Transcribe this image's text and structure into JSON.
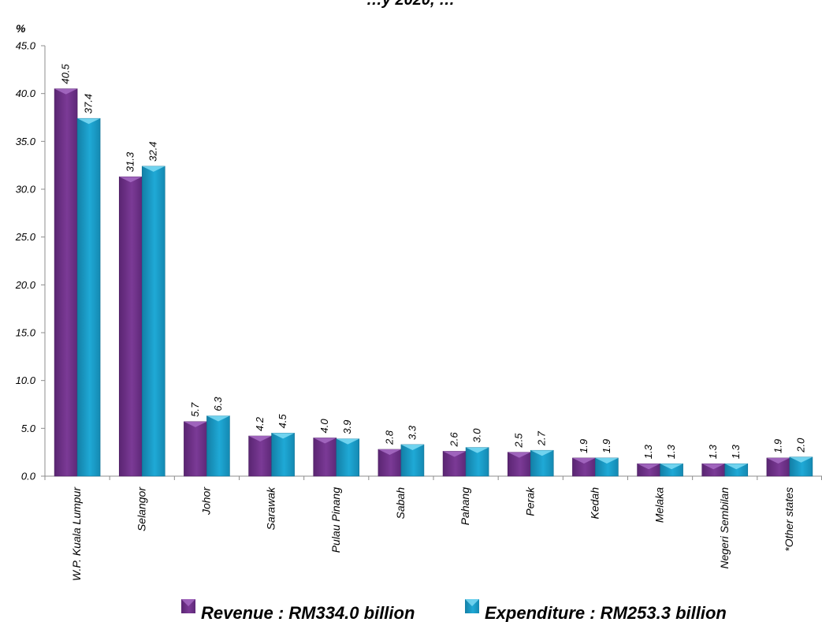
{
  "chart_data": {
    "type": "bar",
    "title": "…y 2020, …",
    "ylabel": "%",
    "xlabel": "",
    "ylim": [
      0,
      45
    ],
    "yticks": [
      "0.0",
      "5.0",
      "10.0",
      "15.0",
      "20.0",
      "25.0",
      "30.0",
      "35.0",
      "40.0",
      "45.0"
    ],
    "grid": false,
    "legend_position": "bottom",
    "categories": [
      "W.P. Kuala Lumpur",
      "Selangor",
      "Johor",
      "Sarawak",
      "Pulau Pinang",
      "Sabah",
      "Pahang",
      "Perak",
      "Kedah",
      "Melaka",
      "Negeri Sembilan",
      "*Other states"
    ],
    "series": [
      {
        "name": "Revenue : RM334.0 billion",
        "color": "#7b3a96",
        "values": [
          40.5,
          31.3,
          5.7,
          4.2,
          4.0,
          2.8,
          2.6,
          2.5,
          1.9,
          1.3,
          1.3,
          1.9
        ],
        "labels": [
          "40.5",
          "31.3",
          "5.7",
          "4.2",
          "4.0",
          "2.8",
          "2.6",
          "2.5",
          "1.9",
          "1.3",
          "1.3",
          "1.9"
        ]
      },
      {
        "name": "Expenditure : RM253.3 billion",
        "color": "#1fa9d6",
        "values": [
          37.4,
          32.4,
          6.3,
          4.5,
          3.9,
          3.3,
          3.0,
          2.7,
          1.9,
          1.3,
          1.3,
          2.0
        ],
        "labels": [
          "37.4",
          "32.4",
          "6.3",
          "4.5",
          "3.9",
          "3.3",
          "3.0",
          "2.7",
          "1.9",
          "1.3",
          "1.3",
          "2.0"
        ]
      }
    ]
  }
}
